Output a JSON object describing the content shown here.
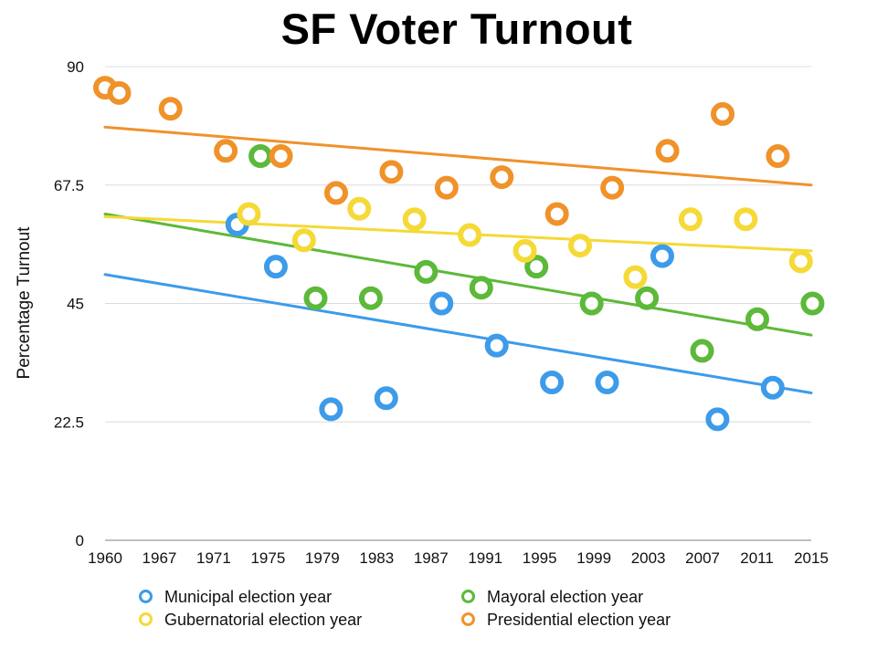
{
  "chart_data": {
    "type": "scatter",
    "title": "SF Voter Turnout",
    "xlabel": "",
    "ylabel": "Percentage Turnout",
    "xlim": [
      1960,
      2015
    ],
    "ylim": [
      0,
      90
    ],
    "x_ticks": [
      "1960",
      "1967",
      "1971",
      "1975",
      "1979",
      "1983",
      "1987",
      "1991",
      "1995",
      "1999",
      "2003",
      "2007",
      "2011",
      "2015"
    ],
    "y_ticks": [
      "0",
      "22.5",
      "45",
      "67.5",
      "90"
    ],
    "grid": true,
    "legend_position": "bottom",
    "series": [
      {
        "name": "Municipal election year",
        "color": "#3d9be9",
        "points": [
          [
            1970.3,
            60.0
          ],
          [
            1973.3,
            52.0
          ],
          [
            1977.6,
            24.9
          ],
          [
            1981.9,
            27.0
          ],
          [
            1986.2,
            45.0
          ],
          [
            1990.5,
            37.0
          ],
          [
            1994.8,
            30.0
          ],
          [
            1999.1,
            30.0
          ],
          [
            2003.4,
            54.0
          ],
          [
            2007.7,
            23.0
          ],
          [
            2012.0,
            29.0
          ]
        ],
        "trendline": [
          [
            1960,
            50.5
          ],
          [
            2015,
            28.0
          ]
        ]
      },
      {
        "name": "Mayoral election year",
        "color": "#5cb939",
        "points": [
          [
            1972.1,
            73.0
          ],
          [
            1976.4,
            46.0
          ],
          [
            1980.7,
            46.0
          ],
          [
            1985.0,
            51.0
          ],
          [
            1989.3,
            48.0
          ],
          [
            1993.6,
            52.0
          ],
          [
            1997.9,
            45.0
          ],
          [
            2002.2,
            46.0
          ],
          [
            2006.5,
            36.0
          ],
          [
            2010.8,
            42.0
          ],
          [
            2015.1,
            45.0
          ]
        ],
        "trendline": [
          [
            1960,
            62.0
          ],
          [
            2015,
            39.0
          ]
        ]
      },
      {
        "name": "Gubernatorial election year",
        "color": "#f5d936",
        "points": [
          [
            1971.2,
            62.0
          ],
          [
            1975.5,
            57.0
          ],
          [
            1979.8,
            63.0
          ],
          [
            1984.1,
            61.0
          ],
          [
            1988.4,
            58.0
          ],
          [
            1992.7,
            55.0
          ],
          [
            1997.0,
            56.0
          ],
          [
            2001.3,
            50.0
          ],
          [
            2005.6,
            61.0
          ],
          [
            2009.9,
            61.0
          ],
          [
            2014.2,
            53.0
          ]
        ],
        "trendline": [
          [
            1960,
            61.5
          ],
          [
            2015,
            55.0
          ]
        ]
      },
      {
        "name": "Presidential election year",
        "color": "#f0922a",
        "points": [
          [
            1960.0,
            86.0
          ],
          [
            1961.1,
            85.0
          ],
          [
            1965.1,
            82.0
          ],
          [
            1969.4,
            74.0
          ],
          [
            1973.7,
            73.0
          ],
          [
            1978.0,
            66.0
          ],
          [
            1982.3,
            70.0
          ],
          [
            1986.6,
            67.0
          ],
          [
            1990.9,
            69.0
          ],
          [
            1995.2,
            62.0
          ],
          [
            1999.5,
            67.0
          ],
          [
            2003.8,
            74.0
          ],
          [
            2008.1,
            81.0
          ],
          [
            2012.4,
            73.0
          ]
        ],
        "trendline": [
          [
            1960,
            78.5
          ],
          [
            2015,
            67.5
          ]
        ]
      }
    ]
  }
}
